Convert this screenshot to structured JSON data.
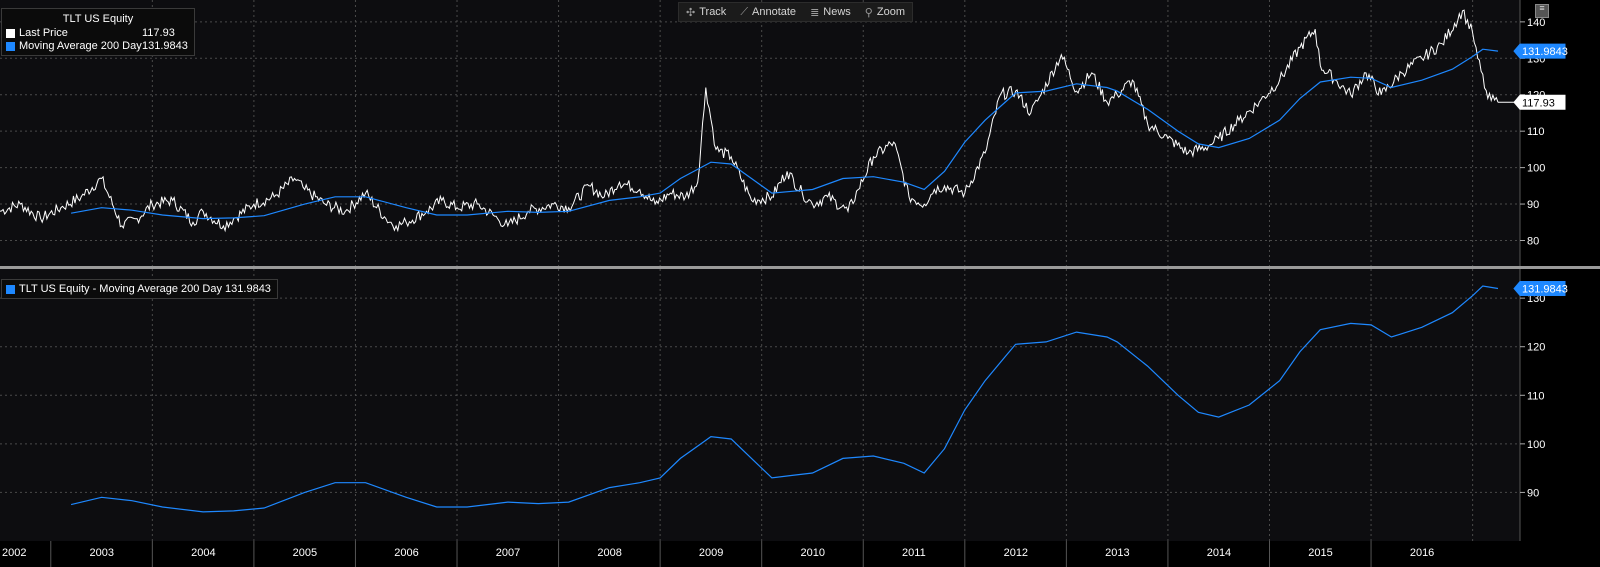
{
  "toolbar": {
    "items": [
      {
        "label": "Track",
        "icon": "crosshair-icon"
      },
      {
        "label": "Annotate",
        "icon": "pencil-icon"
      },
      {
        "label": "News",
        "icon": "news-icon"
      },
      {
        "label": "Zoom",
        "icon": "zoom-icon"
      }
    ]
  },
  "legend_top": {
    "title": "TLT US Equity",
    "rows": [
      {
        "name": "Last Price",
        "value": "117.93",
        "color": "#ffffff"
      },
      {
        "name": "Moving Average 200 Day",
        "value": "131.9843",
        "color": "#1e88ff"
      }
    ]
  },
  "legend_bottom": {
    "text": "TLT US Equity - Moving Average 200 Day 131.9843",
    "color": "#1e88ff"
  },
  "colors": {
    "background": "#000000",
    "panel": "#0d0d10",
    "grid": "#4a4a4a",
    "price": "#ffffff",
    "ma": "#1e88ff",
    "axis_text": "#ffffff"
  },
  "chart_data": [
    {
      "type": "line",
      "title": "TLT US Equity",
      "x_axis_labels": [
        "2002",
        "2003",
        "2004",
        "2005",
        "2006",
        "2007",
        "2008",
        "2009",
        "2010",
        "2011",
        "2012",
        "2013",
        "2014",
        "2015",
        "2016"
      ],
      "y_ticks": [
        80,
        90,
        100,
        110,
        120,
        130,
        140
      ],
      "ylim": [
        73,
        146
      ],
      "xlim": [
        2002.0,
        2016.75
      ],
      "last_value_labels": [
        "131.9843",
        "117.93"
      ],
      "series": [
        {
          "name": "Last Price",
          "color": "#ffffff",
          "x": [
            2002.0,
            2002.2,
            2002.4,
            2002.6,
            2002.8,
            2003.0,
            2003.2,
            2003.35,
            2003.5,
            2003.7,
            2003.9,
            2004.0,
            2004.2,
            2004.3,
            2004.5,
            2004.7,
            2004.9,
            2005.0,
            2005.2,
            2005.4,
            2005.6,
            2005.8,
            2005.9,
            2006.0,
            2006.2,
            2006.35,
            2006.5,
            2006.7,
            2006.9,
            2007.0,
            2007.2,
            2007.45,
            2007.6,
            2007.8,
            2007.95,
            2008.1,
            2008.3,
            2008.45,
            2008.6,
            2008.75,
            2008.87,
            2008.95,
            2009.05,
            2009.2,
            2009.4,
            2009.6,
            2009.75,
            2009.9,
            2010.0,
            2010.15,
            2010.35,
            2010.45,
            2010.6,
            2010.8,
            2010.95,
            2011.1,
            2011.2,
            2011.3,
            2011.5,
            2011.7,
            2011.85,
            2012.0,
            2012.15,
            2012.25,
            2012.45,
            2012.6,
            2012.75,
            2012.9,
            2013.0,
            2013.15,
            2013.3,
            2013.5,
            2013.7,
            2013.9,
            2014.0,
            2014.2,
            2014.4,
            2014.6,
            2014.8,
            2014.95,
            2015.0,
            2015.15,
            2015.3,
            2015.45,
            2015.6,
            2015.8,
            2016.0,
            2016.2,
            2016.4,
            2016.5,
            2016.55,
            2016.65,
            2016.75
          ],
          "values": [
            88,
            90,
            86,
            89,
            92,
            97,
            84,
            86,
            90,
            91,
            85,
            88,
            84,
            86,
            90,
            92,
            97,
            94,
            90,
            88,
            93,
            86,
            84,
            85,
            88,
            91,
            89,
            90,
            86,
            84,
            88,
            90,
            89,
            95,
            92,
            96,
            94,
            90,
            93,
            92,
            96,
            122,
            105,
            103,
            91,
            92,
            99,
            93,
            90,
            92,
            88,
            94,
            103,
            107,
            92,
            90,
            94,
            95,
            93,
            104,
            120,
            121,
            115,
            120,
            131,
            121,
            126,
            118,
            120,
            124,
            112,
            108,
            104,
            106,
            108,
            113,
            118,
            124,
            133,
            138,
            128,
            124,
            120,
            126,
            120,
            126,
            130,
            134,
            143,
            137,
            130,
            119,
            117.93
          ]
        },
        {
          "name": "Moving Average 200 Day",
          "color": "#1e88ff",
          "x": [
            2002.7,
            2003.0,
            2003.3,
            2003.6,
            2004.0,
            2004.3,
            2004.6,
            2005.0,
            2005.3,
            2005.6,
            2006.0,
            2006.3,
            2006.6,
            2007.0,
            2007.3,
            2007.6,
            2008.0,
            2008.3,
            2008.5,
            2008.7,
            2008.9,
            2009.0,
            2009.2,
            2009.4,
            2009.6,
            2009.8,
            2010.0,
            2010.3,
            2010.6,
            2010.9,
            2011.1,
            2011.3,
            2011.5,
            2011.7,
            2011.9,
            2012.0,
            2012.3,
            2012.6,
            2012.9,
            2013.0,
            2013.3,
            2013.6,
            2013.8,
            2014.0,
            2014.3,
            2014.6,
            2014.8,
            2015.0,
            2015.3,
            2015.5,
            2015.7,
            2016.0,
            2016.3,
            2016.5,
            2016.6,
            2016.75
          ],
          "values": [
            87.5,
            89,
            88.3,
            87,
            86,
            86.2,
            86.8,
            90,
            92,
            92,
            89,
            87,
            87,
            88,
            87.7,
            88,
            91,
            92,
            93,
            97,
            100,
            101.5,
            101,
            97,
            93,
            93.5,
            94,
            97,
            97.5,
            96,
            94,
            99,
            107,
            113,
            118,
            120.5,
            121,
            123,
            122,
            121,
            116,
            110,
            106.5,
            105.5,
            108,
            113,
            119,
            123.5,
            124.8,
            124.5,
            122,
            124,
            127,
            130.5,
            132.5,
            131.98
          ]
        }
      ]
    }
  ]
}
